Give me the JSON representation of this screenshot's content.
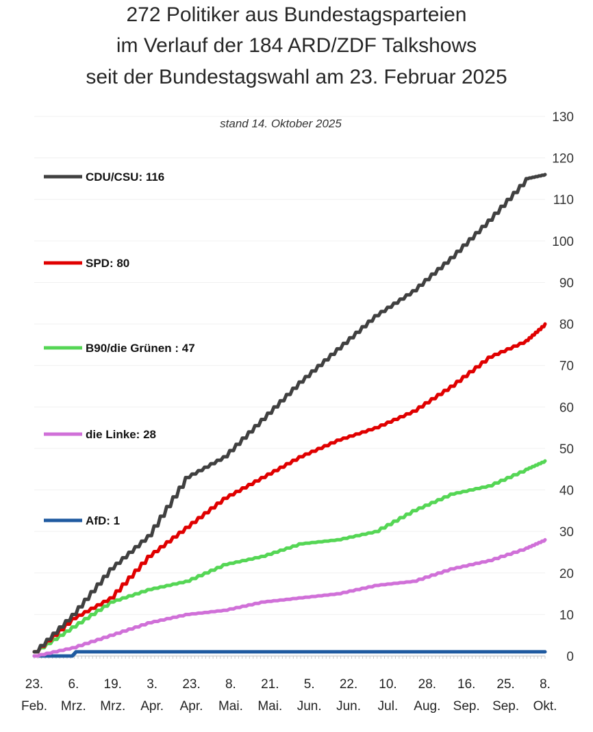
{
  "title": {
    "line1": "272 Politiker aus Bundestagsparteien",
    "line2": "im Verlauf der 184 ARD/ZDF Talkshows",
    "line3": "seit der Bundestagswahl am 23. Februar 2025"
  },
  "chart_data": {
    "type": "line",
    "title": "272 Politiker aus Bundestagsparteien im Verlauf der 184 ARD/ZDF Talkshows seit der Bundestagswahl am 23. Februar 2025",
    "subtitle": "stand 14. Oktober 2025",
    "xlabel": "",
    "ylabel": "",
    "ylim": [
      0,
      130
    ],
    "yticks": [
      0,
      10,
      20,
      30,
      40,
      50,
      60,
      70,
      80,
      90,
      100,
      110,
      120,
      130
    ],
    "xlim": [
      0,
      184
    ],
    "x_ticks": [
      {
        "pos": 0,
        "day": "23.",
        "month": "Feb."
      },
      {
        "pos": 10,
        "day": "6.",
        "month": "Mrz."
      },
      {
        "pos": 20,
        "day": "19.",
        "month": "Mrz."
      },
      {
        "pos": 30,
        "day": "3.",
        "month": "Apr."
      },
      {
        "pos": 40,
        "day": "23.",
        "month": "Apr."
      },
      {
        "pos": 50,
        "day": "8.",
        "month": "Mai."
      },
      {
        "pos": 60,
        "day": "21.",
        "month": "Mai."
      },
      {
        "pos": 70,
        "day": "5.",
        "month": "Jun."
      },
      {
        "pos": 80,
        "day": "22.",
        "month": "Jun."
      },
      {
        "pos": 90,
        "day": "10.",
        "month": "Jul."
      },
      {
        "pos": 100,
        "day": "28.",
        "month": "Aug."
      },
      {
        "pos": 110,
        "day": "16.",
        "month": "Sep."
      },
      {
        "pos": 120,
        "day": "25.",
        "month": "Sep."
      },
      {
        "pos": 130,
        "day": "8.",
        "month": "Okt."
      }
    ],
    "series": [
      {
        "name": "CDU/CSU: 116",
        "color": "#404040",
        "x": [
          0,
          10,
          20,
          30,
          40,
          50,
          60,
          70,
          80,
          90,
          100,
          110,
          120,
          130,
          135
        ],
        "values": [
          1,
          10,
          21,
          29,
          43,
          48,
          57,
          66,
          74,
          82,
          88,
          96,
          105,
          115,
          116
        ]
      },
      {
        "name": "SPD: 80",
        "color": "#e00000",
        "x": [
          0,
          10,
          20,
          30,
          40,
          50,
          60,
          70,
          80,
          90,
          100,
          110,
          120,
          130,
          135
        ],
        "values": [
          1,
          9,
          14,
          24,
          31,
          38,
          43,
          48,
          52,
          55,
          59,
          65,
          72,
          76,
          80
        ]
      },
      {
        "name": "B90/die Grünen : 47",
        "color": "#55d655",
        "x": [
          0,
          10,
          20,
          30,
          40,
          50,
          60,
          70,
          80,
          90,
          100,
          110,
          120,
          130,
          135
        ],
        "values": [
          1,
          7,
          13,
          16,
          18,
          22,
          24,
          27,
          28,
          30,
          35,
          39,
          41,
          45,
          47
        ]
      },
      {
        "name": "die Linke: 28",
        "color": "#d070d8",
        "x": [
          0,
          10,
          20,
          30,
          40,
          50,
          60,
          70,
          80,
          90,
          100,
          110,
          120,
          130,
          135
        ],
        "values": [
          0,
          2,
          5,
          8,
          10,
          11,
          13,
          14,
          15,
          17,
          18,
          21,
          23,
          26,
          28
        ]
      },
      {
        "name": "AfD: 1",
        "color": "#1f5aa0",
        "x": [
          0,
          10,
          11,
          135
        ],
        "values": [
          0,
          0,
          1,
          1
        ]
      }
    ]
  }
}
